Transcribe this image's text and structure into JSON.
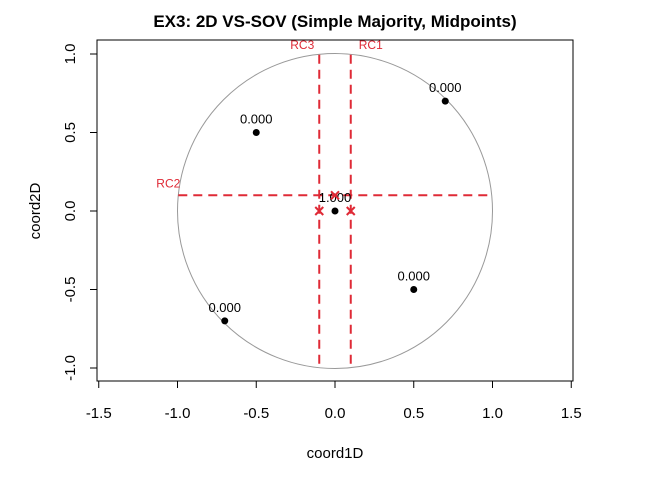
{
  "chart_data": {
    "type": "scatter",
    "title": "EX3: 2D VS-SOV (Simple Majority, Midpoints)",
    "xlabel": "coord1D",
    "ylabel": "coord2D",
    "xlim": [
      -1.5,
      1.5
    ],
    "ylim": [
      -1.0,
      1.0
    ],
    "xticks": [
      "-1.5",
      "-1.0",
      "-0.5",
      "0.0",
      "0.5",
      "1.0",
      "1.5"
    ],
    "yticks": [
      "-1.0",
      "-0.5",
      "0.0",
      "0.5",
      "1.0"
    ],
    "grid": false,
    "unit_circle": {
      "center": [
        0,
        0
      ],
      "radius": 1,
      "color": "#999999"
    },
    "points": [
      {
        "x": 0.0,
        "y": 0.0,
        "label": "1.000"
      },
      {
        "x": -0.5,
        "y": 0.5,
        "label": "0.000"
      },
      {
        "x": 0.7,
        "y": 0.7,
        "label": "0.000"
      },
      {
        "x": 0.5,
        "y": -0.5,
        "label": "0.000"
      },
      {
        "x": -0.7,
        "y": -0.7,
        "label": "0.000"
      }
    ],
    "cut_lines": [
      {
        "name": "RC1",
        "orientation": "vertical",
        "value": 0.1
      },
      {
        "name": "RC2",
        "orientation": "horizontal",
        "value": 0.1
      },
      {
        "name": "RC3",
        "orientation": "vertical",
        "value": -0.1
      }
    ],
    "midpoints": [
      {
        "x": -0.1,
        "y": 0.0
      },
      {
        "x": 0.1,
        "y": 0.0
      },
      {
        "x": 0.0,
        "y": 0.1
      }
    ],
    "colors": {
      "points": "#000000",
      "cut_lines": "#DF2A36",
      "labels": "#DF2A36",
      "circle": "#999999"
    }
  }
}
